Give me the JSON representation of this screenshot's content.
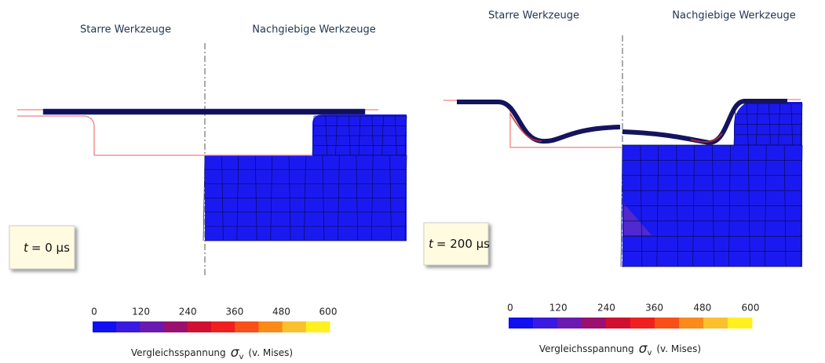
{
  "panels": [
    {
      "left_label": "Starre Werkzeuge",
      "right_label": "Nachgiebige Werkzeuge",
      "time": {
        "symbol": "t",
        "text": "= 0 µs"
      },
      "colorbar": {
        "ticks": [
          0,
          120,
          240,
          360,
          480,
          600
        ],
        "colors": [
          "#1010f0",
          "#3a1ae0",
          "#6a1ab0",
          "#9a1070",
          "#d01030",
          "#f02020",
          "#f85018",
          "#fa8a1a",
          "#fbc030",
          "#fff020"
        ],
        "title": "Vergleichsspannung",
        "sigma": "σ",
        "subscript": "v",
        "suffix": "(v. Mises)"
      }
    },
    {
      "left_label": "Starre Werkzeuge",
      "right_label": "Nachgiebige Werkzeuge",
      "time": {
        "symbol": "t",
        "text": "= 200 µs"
      },
      "colorbar": {
        "ticks": [
          0,
          120,
          240,
          360,
          480,
          600
        ],
        "colors": [
          "#1010f0",
          "#3a1ae0",
          "#6a1ab0",
          "#9a1070",
          "#d01030",
          "#f02020",
          "#f85018",
          "#fa8a1a",
          "#fbc030",
          "#fff020"
        ],
        "title": "Vergleichsspannung",
        "sigma": "σ",
        "subscript": "v",
        "suffix": "(v. Mises)"
      }
    }
  ]
}
